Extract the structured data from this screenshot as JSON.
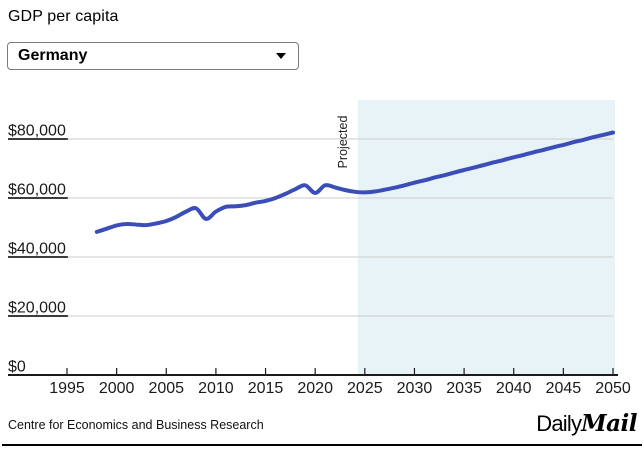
{
  "title": "GDP per capita",
  "dropdown": {
    "value": "Germany"
  },
  "chart_data": {
    "type": "line",
    "title": "GDP per capita",
    "xlim": [
      1995,
      2050
    ],
    "ylim": [
      0,
      80000
    ],
    "x_ticks": [
      1995,
      2000,
      2005,
      2010,
      2015,
      2020,
      2025,
      2030,
      2035,
      2040,
      2045,
      2050
    ],
    "y_ticks": {
      "values": [
        0,
        20000,
        40000,
        60000,
        80000
      ],
      "labels": [
        "$0",
        "$20,000",
        "$40,000",
        "$60,000",
        "$80,000"
      ]
    },
    "annotation": "Projected",
    "projected_start_year": 2024,
    "line_color": "#3b4db8",
    "projection_fill": "#e8f3f8",
    "series": [
      {
        "name": "Germany",
        "x": [
          1998,
          1999,
          2000,
          2001,
          2002,
          2003,
          2004,
          2005,
          2006,
          2007,
          2008,
          2009,
          2010,
          2011,
          2012,
          2013,
          2014,
          2015,
          2016,
          2017,
          2018,
          2019,
          2020,
          2021,
          2022,
          2023,
          2024,
          2025,
          2026,
          2027,
          2028,
          2029,
          2030,
          2031,
          2032,
          2033,
          2034,
          2035,
          2036,
          2037,
          2038,
          2039,
          2040,
          2041,
          2042,
          2043,
          2044,
          2045,
          2046,
          2047,
          2048,
          2049,
          2050
        ],
        "values": [
          48500,
          49600,
          50700,
          51200,
          51000,
          50800,
          51400,
          52200,
          53600,
          55400,
          56500,
          52900,
          55400,
          57000,
          57200,
          57600,
          58400,
          59000,
          60000,
          61400,
          63000,
          64300,
          61700,
          64300,
          63600,
          62700,
          62100,
          61900,
          62200,
          62800,
          63500,
          64300,
          65200,
          66000,
          66900,
          67700,
          68600,
          69500,
          70300,
          71200,
          72100,
          72900,
          73800,
          74600,
          75500,
          76300,
          77200,
          78000,
          78900,
          79700,
          80600,
          81400,
          82200
        ]
      }
    ]
  },
  "footer": {
    "source": "Centre for Economics and Business Research",
    "brand_daily": "Daily",
    "brand_mail": "Mail"
  }
}
